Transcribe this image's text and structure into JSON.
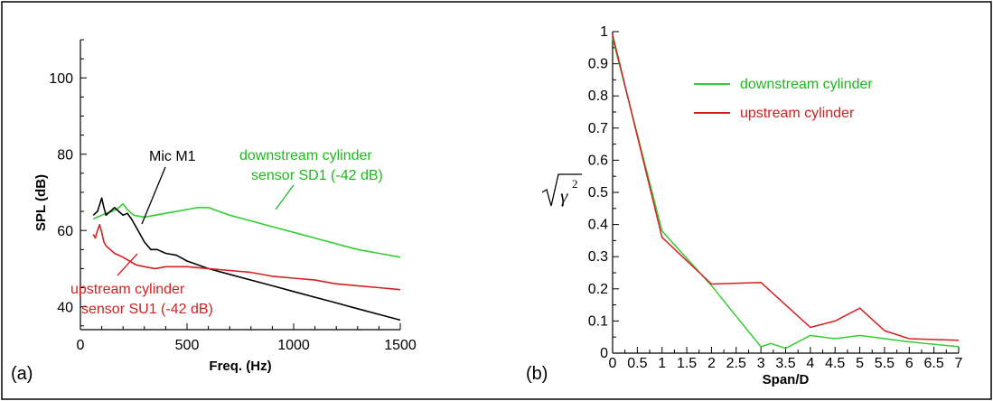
{
  "panels": {
    "a": {
      "label": "(a)",
      "chart_data": {
        "type": "line",
        "xlabel": "Freq. (Hz)",
        "ylabel": "SPL (dB)",
        "xlim": [
          0,
          1500
        ],
        "ylim": [
          34,
          110
        ],
        "xticks": [
          0,
          500,
          1000,
          1500
        ],
        "yticks": [
          40,
          60,
          80,
          100
        ],
        "grid": false,
        "annotations": [
          {
            "id": "mic",
            "text": "Mic M1",
            "color": "#000000"
          },
          {
            "id": "down1",
            "text": "downstream cylinder",
            "color": "#1db81d"
          },
          {
            "id": "down2",
            "text": "sensor SD1 (-42 dB)",
            "color": "#1db81d"
          },
          {
            "id": "up1",
            "text": "upstream cylinder",
            "color": "#d42020"
          },
          {
            "id": "up2",
            "text": "sensor SU1 (-42 dB)",
            "color": "#d42020"
          }
        ],
        "series": [
          {
            "id": "downstream",
            "color": "#33cc33",
            "x": [
              60,
              80,
              100,
              120,
              150,
              180,
              200,
              220,
              250,
              300,
              350,
              400,
              450,
              500,
              550,
              600,
              650,
              700,
              800,
              900,
              1000,
              1100,
              1200,
              1300,
              1400,
              1500
            ],
            "y": [
              63,
              63.5,
              64,
              64.5,
              65,
              66,
              67,
              65.5,
              64,
              63.5,
              64,
              64.5,
              65,
              65.5,
              66,
              66,
              65,
              64,
              62.5,
              61,
              59.5,
              58,
              56.5,
              55,
              54,
              53
            ]
          },
          {
            "id": "mic_m1",
            "color": "#000000",
            "x": [
              60,
              80,
              100,
              110,
              120,
              140,
              160,
              180,
              200,
              220,
              240,
              260,
              280,
              300,
              330,
              360,
              400,
              450,
              500,
              600,
              700,
              800,
              900,
              1000,
              1100,
              1200,
              1300,
              1400,
              1500
            ],
            "y": [
              64,
              65,
              68.5,
              66,
              64,
              65,
              66,
              65,
              64,
              64.5,
              63,
              61,
              59,
              57,
              55,
              55,
              54,
              53.5,
              52,
              50,
              48.5,
              47,
              45.5,
              44,
              42.5,
              41,
              39.5,
              38,
              36.5
            ]
          },
          {
            "id": "upstream",
            "color": "#d42020",
            "x": [
              60,
              70,
              80,
              90,
              100,
              110,
              120,
              140,
              160,
              180,
              200,
              230,
              260,
              300,
              350,
              400,
              450,
              500,
              600,
              700,
              800,
              900,
              1000,
              1100,
              1200,
              1300,
              1400,
              1500
            ],
            "y": [
              59,
              58,
              60,
              61.5,
              59.5,
              57,
              56,
              55,
              54,
              53.5,
              53,
              52,
              51,
              50.5,
              50,
              50.5,
              50.5,
              50.5,
              50,
              49.5,
              49,
              48,
              47.5,
              47,
              46,
              45.5,
              45,
              44.5
            ]
          }
        ]
      }
    },
    "b": {
      "label": "(b)",
      "chart_data": {
        "type": "line",
        "xlabel": "Span/D",
        "ylabel": "√γ²",
        "ylabel_main": "γ",
        "ylabel_sup": "2",
        "xlim": [
          0,
          7
        ],
        "ylim": [
          0,
          1
        ],
        "xticks": [
          0,
          0.5,
          1,
          1.5,
          2,
          2.5,
          3,
          3.5,
          4,
          4.5,
          5,
          5.5,
          6,
          6.5,
          7
        ],
        "xticklabels": [
          "0",
          "0.5",
          "1",
          "1.5",
          "2",
          "2.5",
          "3",
          "3.5",
          "4",
          "4.5",
          "5",
          "5.5",
          "6",
          "6.5",
          "7"
        ],
        "yticks": [
          0,
          0.1,
          0.2,
          0.3,
          0.4,
          0.5,
          0.6,
          0.7,
          0.8,
          0.9,
          1
        ],
        "yticklabels": [
          "0",
          "0.1",
          "0.2",
          "0.3",
          "0.4",
          "0.5",
          "0.6",
          "0.7",
          "0.8",
          "0.9",
          "1"
        ],
        "grid": false,
        "legend": {
          "placement": "top-right",
          "entries": [
            {
              "name": "downstream cylinder",
              "color": "#1db81d"
            },
            {
              "name": "upstream cylinder",
              "color": "#d42020"
            }
          ]
        },
        "series": [
          {
            "name": "downstream cylinder",
            "color": "#33cc33",
            "x": [
              0,
              1,
              2,
              3,
              3.2,
              3.5,
              4,
              4.5,
              5,
              6,
              7
            ],
            "y": [
              0.98,
              0.38,
              0.21,
              0.02,
              0.03,
              0.015,
              0.055,
              0.045,
              0.055,
              0.035,
              0.02
            ]
          },
          {
            "name": "upstream cylinder",
            "color": "#d42020",
            "x": [
              0,
              1,
              2,
              3,
              4,
              4.5,
              5,
              5.5,
              6,
              7
            ],
            "y": [
              0.99,
              0.36,
              0.215,
              0.22,
              0.08,
              0.1,
              0.14,
              0.07,
              0.045,
              0.04
            ]
          }
        ]
      }
    }
  }
}
